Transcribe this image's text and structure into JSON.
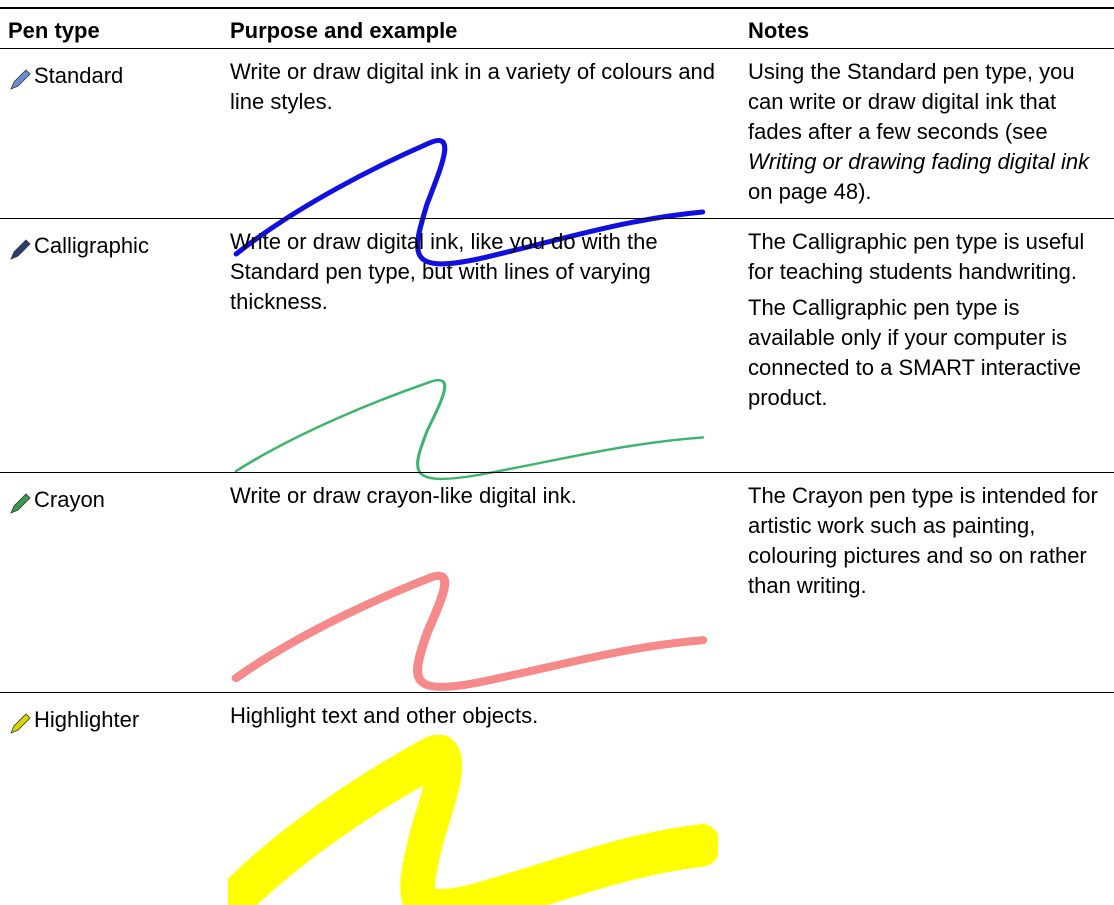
{
  "table": {
    "header": [
      "Pen type",
      "Purpose and example",
      "Notes"
    ],
    "rows": [
      {
        "pen": "Standard",
        "purpose": "Write or draw digital ink in a variety of colours and line styles.",
        "notes": [
          [
            {
              "text": "Using the Standard pen type, you can write or draw digital ink that fades after a few seconds (see "
            },
            {
              "text": "Writing or drawing fading digital ink",
              "italic": true
            },
            {
              "text": " on page 48)."
            }
          ]
        ]
      },
      {
        "pen": "Calligraphic",
        "purpose": "Write or draw digital ink, like you do with the Standard pen type, but with lines of varying thickness.",
        "notes": [
          [
            {
              "text": "The Calligraphic pen type is useful for teaching students handwriting."
            }
          ],
          [
            {
              "text": "The Calligraphic pen type is available only if your computer is connected to a SMART interactive product."
            }
          ]
        ]
      },
      {
        "pen": "Crayon",
        "purpose": "Write or draw crayon-like digital ink.",
        "notes": [
          [
            {
              "text": "The Crayon pen type is intended for artistic work such as painting, colouring pictures and so on rather than writing."
            }
          ]
        ]
      },
      {
        "pen": "Highlighter",
        "purpose": "Highlight text and other objects.",
        "notes": []
      }
    ]
  }
}
